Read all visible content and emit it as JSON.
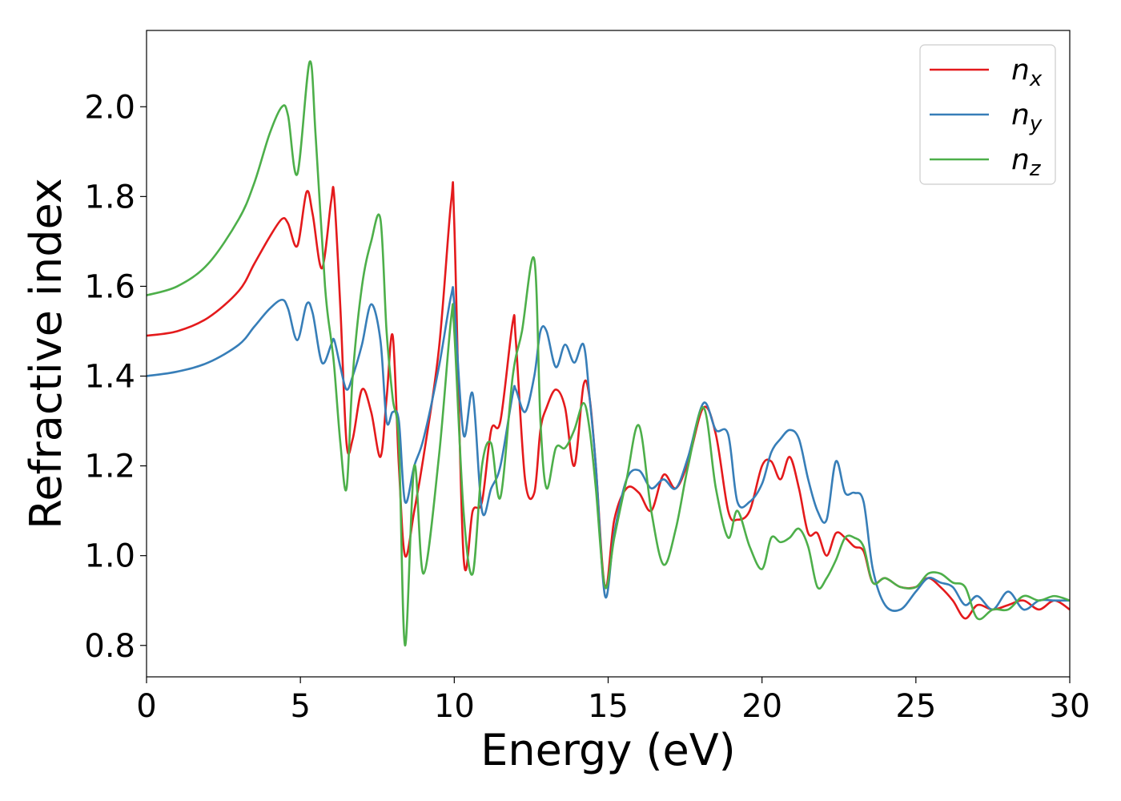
{
  "chart_data": {
    "type": "line",
    "xlabel": "Energy (eV)",
    "ylabel": "Refractive index",
    "xlim": [
      0,
      30
    ],
    "ylim": [
      0.73,
      2.17
    ],
    "xticks": [
      0,
      5,
      10,
      15,
      20,
      25,
      30
    ],
    "xtick_labels": [
      "0",
      "5",
      "10",
      "15",
      "20",
      "25",
      "30"
    ],
    "yticks": [
      0.8,
      1.0,
      1.2,
      1.4,
      1.6,
      1.8,
      2.0
    ],
    "ytick_labels": [
      "0.8",
      "1.0",
      "1.2",
      "1.4",
      "1.6",
      "1.8",
      "2.0"
    ],
    "grid": false,
    "legend_position": "top-right",
    "series": [
      {
        "name": "n",
        "subscript": "x",
        "color": "#e41a1c",
        "x": [
          0,
          1,
          2,
          3,
          3.5,
          4,
          4.4,
          4.6,
          4.9,
          5.2,
          5.4,
          5.7,
          6.0,
          6.1,
          6.3,
          6.5,
          6.7,
          7.0,
          7.3,
          7.6,
          7.8,
          8.0,
          8.2,
          8.4,
          8.7,
          9.0,
          9.5,
          9.9,
          10.0,
          10.3,
          10.6,
          10.9,
          11.2,
          11.5,
          11.9,
          12.0,
          12.3,
          12.6,
          12.8,
          13.0,
          13.3,
          13.6,
          13.9,
          14.2,
          14.4,
          14.6,
          14.9,
          15.2,
          15.6,
          16.0,
          16.4,
          16.8,
          17.2,
          17.6,
          18.1,
          18.5,
          18.9,
          19.2,
          19.6,
          20.0,
          20.3,
          20.6,
          20.9,
          21.2,
          21.5,
          21.8,
          22.1,
          22.4,
          22.7,
          23.0,
          23.3,
          23.6,
          24.0,
          24.5,
          25.0,
          25.4,
          25.8,
          26.2,
          26.6,
          27.0,
          27.5,
          28.0,
          28.5,
          29.0,
          29.5,
          30.0
        ],
        "y": [
          1.49,
          1.5,
          1.53,
          1.59,
          1.65,
          1.71,
          1.75,
          1.74,
          1.69,
          1.81,
          1.76,
          1.64,
          1.79,
          1.8,
          1.55,
          1.25,
          1.26,
          1.37,
          1.32,
          1.22,
          1.35,
          1.49,
          1.2,
          1.0,
          1.1,
          1.22,
          1.46,
          1.79,
          1.74,
          1.0,
          1.1,
          1.12,
          1.28,
          1.3,
          1.52,
          1.48,
          1.17,
          1.14,
          1.28,
          1.33,
          1.37,
          1.33,
          1.2,
          1.38,
          1.35,
          1.2,
          0.93,
          1.08,
          1.15,
          1.14,
          1.1,
          1.18,
          1.15,
          1.21,
          1.33,
          1.27,
          1.1,
          1.08,
          1.1,
          1.2,
          1.21,
          1.17,
          1.22,
          1.15,
          1.05,
          1.05,
          1.0,
          1.05,
          1.04,
          1.02,
          1.01,
          0.94,
          0.95,
          0.93,
          0.93,
          0.95,
          0.93,
          0.9,
          0.86,
          0.89,
          0.88,
          0.89,
          0.9,
          0.88,
          0.9,
          0.88
        ]
      },
      {
        "name": "n",
        "subscript": "y",
        "color": "#377eb8",
        "x": [
          0,
          1,
          2,
          3,
          3.5,
          4,
          4.4,
          4.6,
          4.9,
          5.2,
          5.4,
          5.7,
          6.0,
          6.1,
          6.3,
          6.5,
          6.7,
          7.0,
          7.3,
          7.6,
          7.8,
          8.0,
          8.2,
          8.4,
          8.7,
          9.0,
          9.5,
          9.9,
          10.0,
          10.3,
          10.6,
          10.9,
          11.2,
          11.5,
          11.9,
          12.0,
          12.3,
          12.6,
          12.8,
          13.0,
          13.3,
          13.6,
          13.9,
          14.2,
          14.4,
          14.6,
          14.9,
          15.2,
          15.6,
          16.0,
          16.4,
          16.8,
          17.2,
          17.6,
          18.1,
          18.5,
          18.9,
          19.2,
          19.6,
          20.0,
          20.3,
          20.6,
          20.9,
          21.2,
          21.5,
          21.8,
          22.1,
          22.4,
          22.7,
          23.0,
          23.3,
          23.6,
          24.0,
          24.5,
          25.0,
          25.4,
          25.8,
          26.2,
          26.6,
          27.0,
          27.5,
          28.0,
          28.5,
          29.0,
          29.5,
          30.0
        ],
        "y": [
          1.4,
          1.41,
          1.43,
          1.47,
          1.51,
          1.55,
          1.57,
          1.55,
          1.48,
          1.56,
          1.54,
          1.43,
          1.47,
          1.48,
          1.42,
          1.37,
          1.4,
          1.47,
          1.56,
          1.48,
          1.3,
          1.32,
          1.3,
          1.12,
          1.2,
          1.26,
          1.42,
          1.58,
          1.56,
          1.27,
          1.36,
          1.1,
          1.15,
          1.2,
          1.36,
          1.37,
          1.32,
          1.4,
          1.5,
          1.5,
          1.42,
          1.47,
          1.43,
          1.47,
          1.35,
          1.2,
          0.91,
          1.05,
          1.17,
          1.19,
          1.15,
          1.17,
          1.15,
          1.22,
          1.34,
          1.28,
          1.27,
          1.12,
          1.12,
          1.16,
          1.23,
          1.26,
          1.28,
          1.26,
          1.17,
          1.1,
          1.08,
          1.21,
          1.14,
          1.14,
          1.12,
          0.97,
          0.89,
          0.88,
          0.92,
          0.95,
          0.94,
          0.93,
          0.89,
          0.91,
          0.88,
          0.92,
          0.88,
          0.9,
          0.9,
          0.9
        ]
      },
      {
        "name": "n",
        "subscript": "z",
        "color": "#4daf4a",
        "x": [
          0,
          1,
          2,
          3,
          3.5,
          4,
          4.4,
          4.6,
          4.9,
          5.3,
          5.5,
          5.8,
          6.0,
          6.1,
          6.3,
          6.5,
          6.7,
          7.0,
          7.3,
          7.6,
          7.8,
          8.0,
          8.2,
          8.4,
          8.7,
          9.0,
          9.5,
          9.9,
          10.0,
          10.3,
          10.6,
          10.9,
          11.2,
          11.5,
          11.9,
          12.2,
          12.6,
          12.8,
          13.0,
          13.3,
          13.6,
          13.9,
          14.2,
          14.4,
          14.6,
          14.9,
          15.2,
          15.6,
          16.0,
          16.4,
          16.8,
          17.2,
          17.6,
          18.1,
          18.5,
          18.9,
          19.2,
          19.6,
          20.0,
          20.3,
          20.6,
          20.9,
          21.2,
          21.5,
          21.8,
          22.1,
          22.4,
          22.7,
          23.0,
          23.3,
          23.6,
          24.0,
          24.5,
          25.0,
          25.4,
          25.8,
          26.2,
          26.6,
          27.0,
          27.5,
          28.0,
          28.5,
          29.0,
          29.5,
          30.0
        ],
        "y": [
          1.58,
          1.6,
          1.65,
          1.75,
          1.83,
          1.94,
          2.0,
          1.98,
          1.85,
          2.1,
          1.93,
          1.6,
          1.48,
          1.42,
          1.25,
          1.15,
          1.4,
          1.6,
          1.7,
          1.75,
          1.5,
          1.35,
          1.25,
          0.8,
          1.2,
          0.96,
          1.22,
          1.53,
          1.5,
          1.1,
          0.96,
          1.2,
          1.25,
          1.13,
          1.4,
          1.5,
          1.66,
          1.3,
          1.15,
          1.24,
          1.24,
          1.28,
          1.34,
          1.28,
          1.15,
          0.93,
          1.04,
          1.17,
          1.29,
          1.1,
          0.98,
          1.06,
          1.2,
          1.33,
          1.15,
          1.04,
          1.1,
          1.02,
          0.97,
          1.04,
          1.03,
          1.04,
          1.06,
          1.02,
          0.93,
          0.95,
          0.99,
          1.04,
          1.04,
          1.02,
          0.94,
          0.95,
          0.93,
          0.93,
          0.96,
          0.96,
          0.94,
          0.93,
          0.86,
          0.88,
          0.88,
          0.91,
          0.9,
          0.91,
          0.9
        ]
      }
    ]
  }
}
